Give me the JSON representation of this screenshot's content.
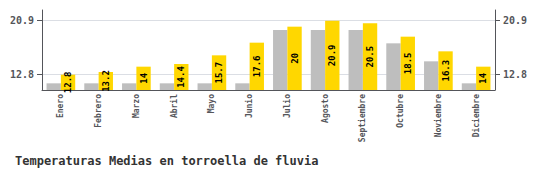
{
  "chart_data": {
    "type": "bar",
    "title": "Temperaturas Medias en torroella de fluvia",
    "categories": [
      "Enero",
      "Febrero",
      "Marzo",
      "Abril",
      "Mayo",
      "Junio",
      "Julio",
      "Agosto",
      "Septiembre",
      "Octubre",
      "Noviembre",
      "Diciembre"
    ],
    "series": [
      {
        "color": "#BEBEBE",
        "values": [
          11.5,
          11.5,
          11.5,
          11.5,
          11.5,
          11.5,
          19.5,
          19.5,
          19.5,
          17.5,
          14.8,
          11.5
        ]
      },
      {
        "color": "#FFD700",
        "values": [
          12.8,
          13.2,
          14.0,
          14.4,
          15.7,
          17.6,
          20.0,
          20.9,
          20.5,
          18.5,
          16.3,
          14.0
        ],
        "data_labels": true
      }
    ],
    "ylim": [
      10.5,
      22.5
    ],
    "yticks": [
      12.8,
      20.9
    ],
    "y2lim": [
      10.5,
      22.5
    ],
    "y2ticks": [
      12.8,
      20.9
    ],
    "grid": true
  }
}
